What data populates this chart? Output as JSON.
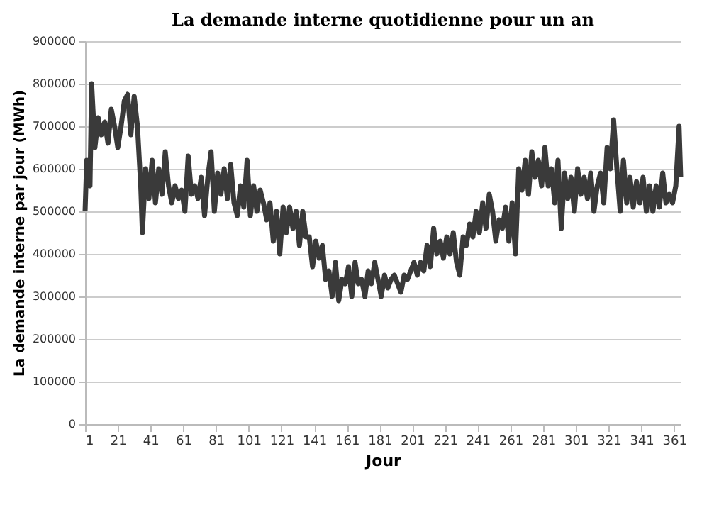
{
  "chart_data": {
    "type": "line",
    "title": "La demande interne quotidienne pour un an",
    "xlabel": "Jour",
    "ylabel": "La demande interne par jour (MWh)",
    "series": [
      {
        "color": "#3a3a3a",
        "x": [
          1,
          2,
          4,
          5,
          7,
          9,
          11,
          13,
          15,
          17,
          19,
          21,
          23,
          25,
          27,
          29,
          31,
          33,
          35,
          36,
          38,
          40,
          42,
          44,
          46,
          48,
          50,
          52,
          54,
          56,
          58,
          60,
          62,
          64,
          66,
          68,
          70,
          72,
          74,
          76,
          78,
          80,
          82,
          84,
          86,
          88,
          90,
          92,
          94,
          96,
          98,
          100,
          102,
          104,
          106,
          108,
          110,
          112,
          114,
          116,
          118,
          120,
          122,
          124,
          126,
          128,
          130,
          132,
          134,
          136,
          138,
          140,
          142,
          144,
          146,
          148,
          150,
          152,
          154,
          156,
          158,
          160,
          162,
          164,
          166,
          168,
          170,
          172,
          174,
          176,
          178,
          180,
          182,
          184,
          186,
          188,
          190,
          192,
          194,
          196,
          198,
          200,
          202,
          204,
          206,
          208,
          210,
          212,
          214,
          216,
          218,
          220,
          222,
          224,
          226,
          228,
          230,
          232,
          234,
          236,
          238,
          240,
          242,
          244,
          246,
          248,
          250,
          252,
          254,
          256,
          258,
          260,
          262,
          264,
          266,
          268,
          270,
          272,
          274,
          276,
          278,
          280,
          282,
          284,
          286,
          288,
          290,
          292,
          294,
          296,
          298,
          300,
          302,
          304,
          306,
          308,
          310,
          312,
          314,
          316,
          318,
          320,
          322,
          324,
          326,
          328,
          330,
          332,
          334,
          336,
          338,
          340,
          342,
          344,
          346,
          348,
          350,
          352,
          354,
          356,
          358,
          360,
          362,
          364,
          365
        ],
        "values": [
          500000,
          620000,
          560000,
          800000,
          650000,
          720000,
          680000,
          710000,
          660000,
          740000,
          700000,
          650000,
          700000,
          760000,
          775000,
          680000,
          770000,
          700000,
          560000,
          450000,
          600000,
          530000,
          620000,
          520000,
          600000,
          540000,
          640000,
          560000,
          520000,
          560000,
          530000,
          550000,
          500000,
          630000,
          540000,
          560000,
          530000,
          580000,
          490000,
          580000,
          640000,
          500000,
          590000,
          540000,
          600000,
          530000,
          610000,
          520000,
          490000,
          560000,
          510000,
          620000,
          490000,
          560000,
          500000,
          550000,
          520000,
          480000,
          520000,
          430000,
          500000,
          400000,
          510000,
          450000,
          510000,
          460000,
          500000,
          420000,
          500000,
          440000,
          440000,
          370000,
          430000,
          390000,
          420000,
          340000,
          360000,
          300000,
          380000,
          290000,
          340000,
          330000,
          370000,
          300000,
          380000,
          330000,
          340000,
          300000,
          360000,
          330000,
          380000,
          340000,
          300000,
          350000,
          320000,
          340000,
          350000,
          330000,
          310000,
          350000,
          340000,
          360000,
          380000,
          350000,
          380000,
          360000,
          420000,
          370000,
          460000,
          400000,
          430000,
          390000,
          440000,
          400000,
          450000,
          380000,
          350000,
          440000,
          420000,
          470000,
          440000,
          500000,
          450000,
          520000,
          460000,
          540000,
          500000,
          430000,
          480000,
          460000,
          510000,
          430000,
          520000,
          400000,
          600000,
          550000,
          620000,
          540000,
          640000,
          580000,
          620000,
          560000,
          650000,
          560000,
          600000,
          520000,
          620000,
          460000,
          590000,
          530000,
          580000,
          500000,
          600000,
          540000,
          580000,
          530000,
          590000,
          500000,
          560000,
          590000,
          520000,
          650000,
          600000,
          715000,
          600000,
          500000,
          620000,
          520000,
          580000,
          510000,
          570000,
          520000,
          580000,
          500000,
          560000,
          500000,
          560000,
          510000,
          590000,
          520000,
          540000,
          520000,
          560000,
          700000,
          580000
        ]
      }
    ],
    "xlim": [
      1,
      365
    ],
    "xticks": [
      1,
      21,
      41,
      61,
      81,
      101,
      121,
      141,
      161,
      181,
      201,
      221,
      241,
      261,
      281,
      301,
      321,
      341,
      361
    ],
    "ylim": [
      0,
      900000
    ],
    "yticks": [
      0,
      100000,
      200000,
      300000,
      400000,
      500000,
      600000,
      700000,
      800000,
      900000
    ],
    "grid": "y",
    "marker": "none",
    "line_style": "solid"
  }
}
